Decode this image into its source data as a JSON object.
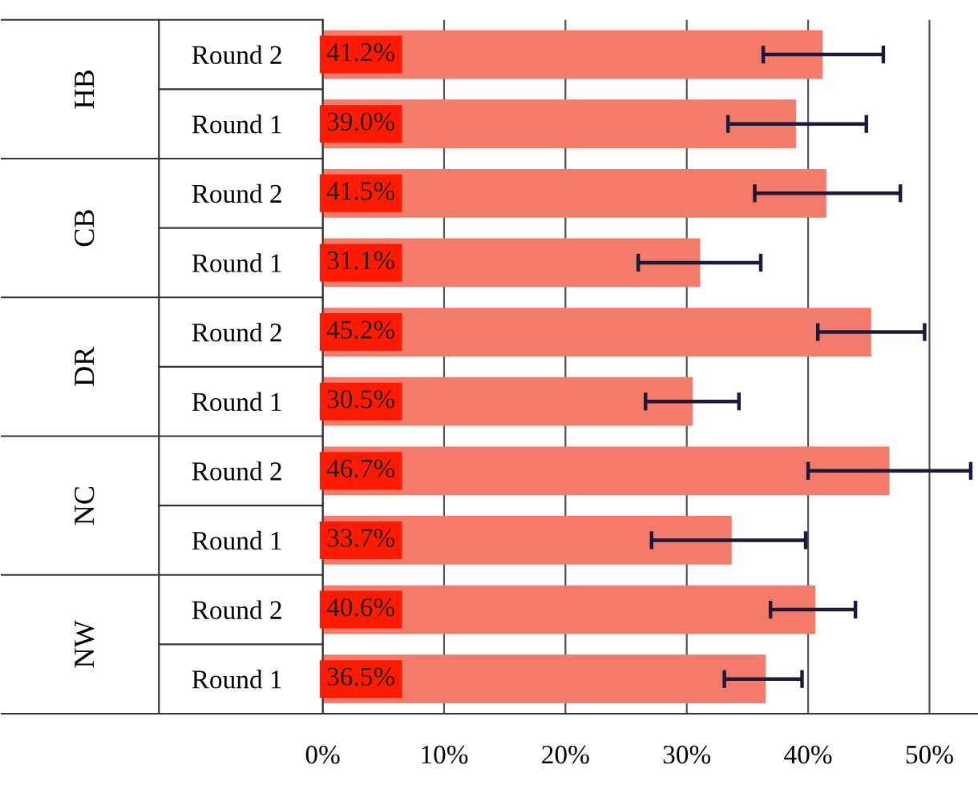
{
  "chart_data": {
    "type": "bar",
    "orientation": "horizontal",
    "categories": [
      "Round 2",
      "Round 1",
      "Round 2",
      "Round 1",
      "Round 2",
      "Round 1",
      "Round 2",
      "Round 1",
      "Round 2",
      "Round 1"
    ],
    "values": [
      41.2,
      39.0,
      41.5,
      31.1,
      45.2,
      30.5,
      46.7,
      33.7,
      40.6,
      36.5
    ],
    "value_labels": [
      "41.2%",
      "39.0%",
      "41.5%",
      "31.1%",
      "45.2%",
      "30.5%",
      "46.7%",
      "33.7%",
      "40.6%",
      "36.5%"
    ],
    "errors": [
      [
        36.3,
        46.2
      ],
      [
        33.4,
        44.8
      ],
      [
        35.6,
        47.6
      ],
      [
        26.0,
        36.1
      ],
      [
        40.8,
        49.6
      ],
      [
        26.6,
        34.3
      ],
      [
        40.0,
        53.4
      ],
      [
        27.1,
        39.8
      ],
      [
        36.9,
        43.9
      ],
      [
        33.1,
        39.5
      ]
    ],
    "color": "#f47a6a",
    "annotations": [
      "HB",
      "CB",
      "DR",
      "NC",
      "NW"
    ],
    "xlim": [
      0,
      54
    ],
    "xticks": [
      {
        "value": 0,
        "label": "0%"
      },
      {
        "value": 10,
        "label": "10%"
      },
      {
        "value": 20,
        "label": "20%"
      },
      {
        "value": 30,
        "label": "30%"
      },
      {
        "value": 40,
        "label": "40%"
      },
      {
        "value": 50,
        "label": "50%"
      }
    ],
    "grid": "x"
  }
}
